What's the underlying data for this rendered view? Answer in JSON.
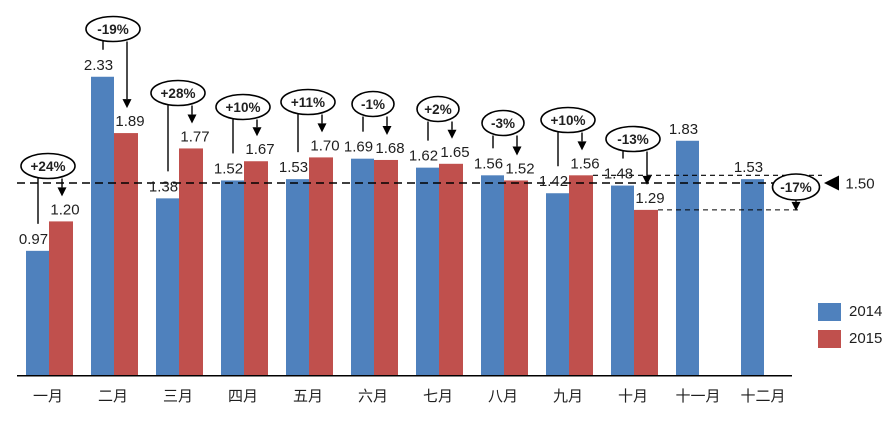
{
  "chart_data": {
    "type": "bar",
    "title": "",
    "xlabel": "",
    "ylabel": "",
    "grid": false,
    "legend_position": "right",
    "ylim": [
      0,
      2.75
    ],
    "categories": [
      "一月",
      "二月",
      "三月",
      "四月",
      "五月",
      "六月",
      "七月",
      "八月",
      "九月",
      "十月",
      "十一月",
      "十二月"
    ],
    "series": [
      {
        "name": "2014",
        "color": "#4F81BD",
        "values": [
          0.97,
          2.33,
          1.38,
          1.52,
          1.53,
          1.69,
          1.62,
          1.56,
          1.42,
          1.48,
          1.83,
          1.53
        ]
      },
      {
        "name": "2015",
        "color": "#C0504D",
        "values": [
          1.2,
          1.89,
          1.77,
          1.67,
          1.7,
          1.68,
          1.65,
          1.52,
          1.56,
          1.29,
          null,
          null
        ]
      }
    ],
    "value_label_format": "0.00",
    "pct_change_annotations": [
      "+24%",
      "-19%",
      "+28%",
      "+10%",
      "+11%",
      "-1%",
      "+2%",
      "-3%",
      "+10%",
      "-13%"
    ],
    "side_annotation": {
      "label": "-17%",
      "from_value": 1.56,
      "to_value": 1.29
    },
    "reference_line": {
      "value": 1.5,
      "label": "1.50"
    }
  }
}
